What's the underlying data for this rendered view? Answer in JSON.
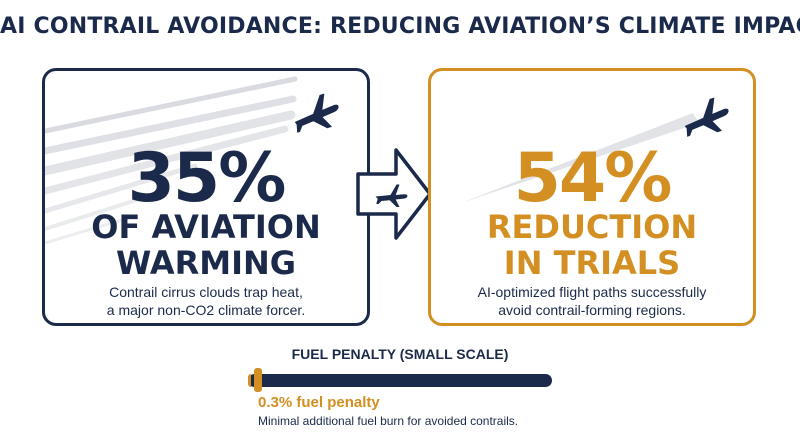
{
  "title": "AI CONTRAIL AVOIDANCE: REDUCING AVIATION’S CLIMATE IMPACT",
  "left_card": {
    "stat": "35%",
    "headline_line1": "OF AVIATION",
    "headline_line2": "WARMING",
    "desc_line1": "Contrail cirrus clouds trap heat,",
    "desc_line2": "a major non-CO2 climate forcer.",
    "icon": "airplane-icon",
    "color": "#1b2a4a"
  },
  "right_card": {
    "stat": "54%",
    "headline_line1": "REDUCTION",
    "headline_line2": "IN TRIALS",
    "desc_line1": "AI-optimized flight paths successfully",
    "desc_line2": "avoid contrail-forming regions.",
    "icon": "airplane-icon",
    "color": "#d48f22"
  },
  "arrow": {
    "icon": "arrow-right-icon",
    "inner_icon": "airplane-icon"
  },
  "fuel": {
    "title": "FUEL PENALTY (SMALL SCALE)",
    "value": "0.3% fuel penalty",
    "description": "Minimal additional fuel burn for avoided contrails.",
    "level_percent": 0.3,
    "bar_color": "#1b2a4a",
    "marker_color": "#d48f22"
  }
}
